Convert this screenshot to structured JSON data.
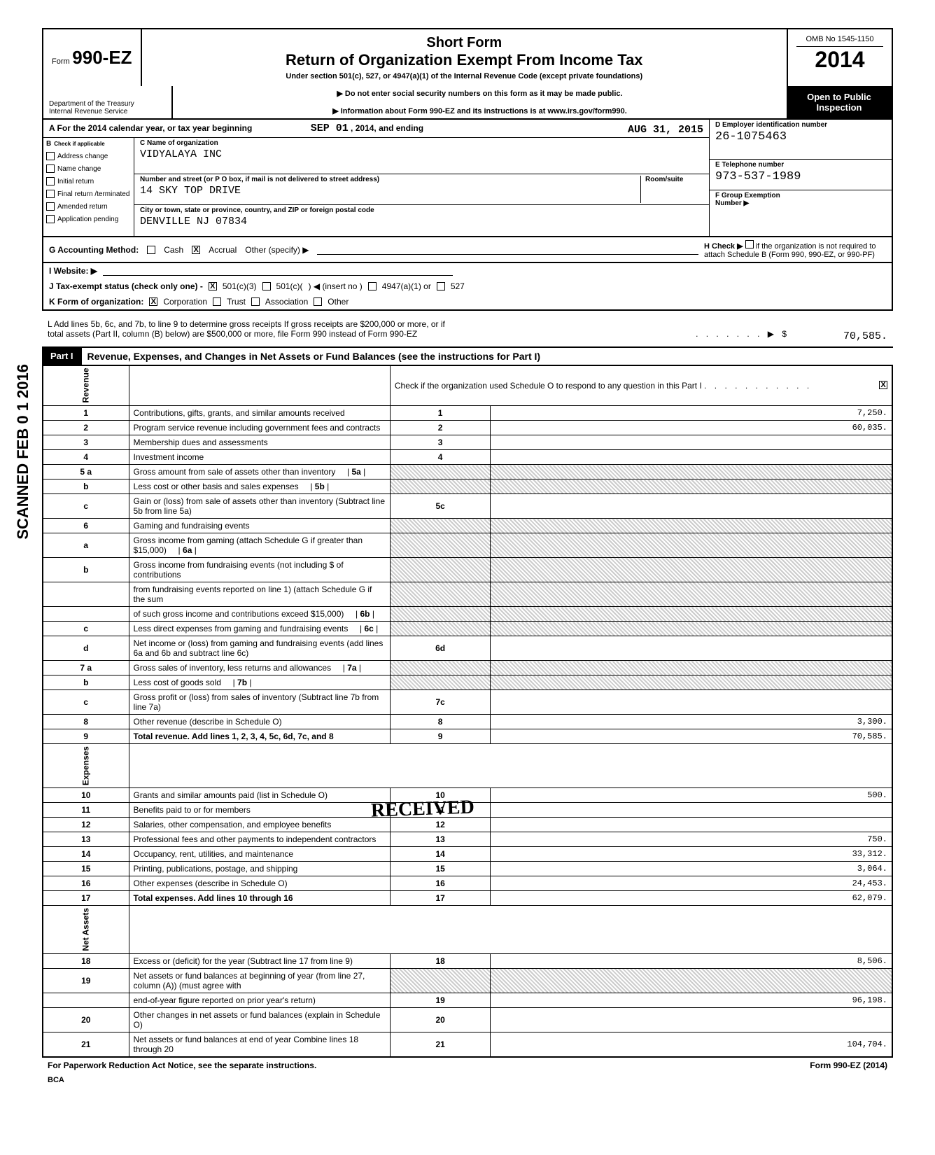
{
  "form": {
    "number_prefix": "Form",
    "number": "990-EZ",
    "short_form": "Short Form",
    "title": "Return of Organization Exempt From Income Tax",
    "subtitle": "Under section 501(c), 527, or 4947(a)(1) of the Internal Revenue Code (except private foundations)",
    "warning": "▶ Do not enter social security numbers on this form as it may be made public.",
    "info": "▶ Information about Form 990-EZ and its instructions is at www.irs.gov/form990.",
    "omb": "OMB No 1545-1150",
    "year": "2014",
    "dept1": "Department of the Treasury",
    "dept2": "Internal Revenue Service",
    "public": "Open to Public Inspection"
  },
  "sectionA": {
    "year_text": "A  For the 2014 calendar year, or tax year beginning",
    "begin_date": "SEP  01",
    "year_mid": ", 2014, and ending",
    "end_date": "AUG  31",
    "end_year": ", 2015",
    "check_label": "B",
    "check_text": "Check if applicable",
    "checks": [
      "Address change",
      "Name change",
      "Initial return",
      "Final return /terminated",
      "Amended return",
      "Application pending"
    ],
    "name_label": "C    Name of organization",
    "name": "VIDYALAYA INC",
    "street_label": "Number and street (or P O  box, if mail is not delivered to street address)",
    "room_label": "Room/suite",
    "street": "14  SKY  TOP  DRIVE",
    "city_label": "City or town, state or province, country, and ZIP or foreign postal code",
    "city": "DENVILLE  NJ  07834",
    "ein_label": "D Employer identification number",
    "ein": "26-1075463",
    "phone_label": "E Telephone number",
    "phone": "973-537-1989",
    "group_label": "F Group Exemption",
    "group_label2": "Number ▶"
  },
  "rows": {
    "g": "G Accounting Method:",
    "g_cash": "Cash",
    "g_accrual": "Accrual",
    "g_other": "Other (specify)  ▶",
    "h": "H Check ▶",
    "h_text": "if the organization is not required to attach Schedule B (Form 990, 990-EZ, or 990-PF)",
    "i": "I   Website:  ▶",
    "j": "J Tax-exempt status (check only one) -",
    "j_501c3": "501(c)(3)",
    "j_501c": "501(c)(",
    "j_insert": ")  ◀ (insert no )",
    "j_4947": "4947(a)(1) or",
    "j_527": "527",
    "k": "K Form of organization:",
    "k_corp": "Corporation",
    "k_trust": "Trust",
    "k_assoc": "Association",
    "k_other": "Other"
  },
  "grossReceipts": {
    "l1": "L Add lines 5b, 6c, and 7b, to line 9 to determine gross receipts  If gross receipts are $200,000 or more, or if",
    "l2": "total assets (Part II, column (B) below) are $500,000 or more, file Form 990 instead of Form 990-EZ",
    "amount": "70,585."
  },
  "part1": {
    "label": "Part I",
    "title": "Revenue, Expenses, and Changes in Net Assets or Fund Balances (see the instructions for Part I)",
    "check_text": "Check if the organization used Schedule O to respond to any question in this Part I"
  },
  "revenue_label": "Revenue",
  "expenses_label": "Expenses",
  "netassets_label": "Net Assets",
  "lines": [
    {
      "n": "1",
      "desc": "Contributions, gifts, grants, and similar amounts received",
      "rn": "1",
      "val": "7,250."
    },
    {
      "n": "2",
      "desc": "Program service revenue including government fees and contracts",
      "rn": "2",
      "val": "60,035."
    },
    {
      "n": "3",
      "desc": "Membership dues and assessments",
      "rn": "3",
      "val": ""
    },
    {
      "n": "4",
      "desc": "Investment income",
      "rn": "4",
      "val": ""
    },
    {
      "n": "5 a",
      "desc": "Gross amount from sale of assets other than inventory",
      "sub": "5a",
      "rn": "",
      "val": "",
      "shaded": true
    },
    {
      "n": "b",
      "desc": "Less  cost or other basis and sales expenses",
      "sub": "5b",
      "rn": "",
      "val": "",
      "shaded": true
    },
    {
      "n": "c",
      "desc": "Gain or (loss) from sale of assets other than inventory (Subtract line 5b from line 5a)",
      "rn": "5c",
      "val": ""
    },
    {
      "n": "6",
      "desc": "Gaming and fundraising events",
      "rn": "",
      "val": "",
      "shaded": true
    },
    {
      "n": "a",
      "desc": "Gross income from gaming (attach Schedule G if greater than $15,000)",
      "sub": "6a",
      "rn": "",
      "val": "",
      "shaded": true
    },
    {
      "n": "b",
      "desc": "Gross income from fundraising events (not including $                                          of contributions",
      "rn": "",
      "val": "",
      "shaded": true
    },
    {
      "n": "",
      "desc": "from fundraising events reported on line 1) (attach Schedule G if the sum",
      "rn": "",
      "val": "",
      "shaded": true
    },
    {
      "n": "",
      "desc": "of such gross income and contributions exceed $15,000)",
      "sub": "6b",
      "rn": "",
      "val": "",
      "shaded": true
    },
    {
      "n": "c",
      "desc": "Less  direct expenses from gaming and fundraising events",
      "sub": "6c",
      "rn": "",
      "val": "",
      "shaded": true
    },
    {
      "n": "d",
      "desc": "Net income or (loss) from gaming and fundraising events (add lines 6a and 6b and subtract line 6c)",
      "rn": "6d",
      "val": ""
    },
    {
      "n": "7 a",
      "desc": "Gross sales of inventory, less returns and allowances",
      "sub": "7a",
      "rn": "",
      "val": "",
      "shaded": true
    },
    {
      "n": "b",
      "desc": "Less  cost of goods sold",
      "sub": "7b",
      "rn": "",
      "val": "",
      "shaded": true
    },
    {
      "n": "c",
      "desc": "Gross profit or (loss) from sales of inventory (Subtract line 7b from line 7a)",
      "rn": "7c",
      "val": ""
    },
    {
      "n": "8",
      "desc": "Other revenue (describe in Schedule O)",
      "rn": "8",
      "val": "3,300."
    },
    {
      "n": "9",
      "desc": "Total revenue. Add lines 1, 2, 3, 4, 5c, 6d, 7c, and 8",
      "rn": "9",
      "val": "70,585.",
      "bold": true
    }
  ],
  "expenses": [
    {
      "n": "10",
      "desc": "Grants and similar amounts paid (list in Schedule O)",
      "rn": "10",
      "val": "500."
    },
    {
      "n": "11",
      "desc": "Benefits paid to or for members",
      "rn": "11",
      "val": ""
    },
    {
      "n": "12",
      "desc": "Salaries, other compensation, and employee benefits",
      "rn": "12",
      "val": ""
    },
    {
      "n": "13",
      "desc": "Professional fees and other payments to independent contractors",
      "rn": "13",
      "val": "750."
    },
    {
      "n": "14",
      "desc": "Occupancy, rent, utilities, and maintenance",
      "rn": "14",
      "val": "33,312."
    },
    {
      "n": "15",
      "desc": "Printing, publications, postage, and shipping",
      "rn": "15",
      "val": "3,064."
    },
    {
      "n": "16",
      "desc": "Other expenses (describe in Schedule O)",
      "rn": "16",
      "val": "24,453."
    },
    {
      "n": "17",
      "desc": "Total expenses. Add lines 10 through 16",
      "rn": "17",
      "val": "62,079.",
      "bold": true
    }
  ],
  "netassets": [
    {
      "n": "18",
      "desc": "Excess or (deficit) for the year (Subtract line 17 from line 9)",
      "rn": "18",
      "val": "8,506."
    },
    {
      "n": "19",
      "desc": "Net assets or fund balances at beginning of year (from line 27, column (A)) (must agree with",
      "rn": "",
      "val": "",
      "shaded": true
    },
    {
      "n": "",
      "desc": "end-of-year figure reported on prior year's return)",
      "rn": "19",
      "val": "96,198."
    },
    {
      "n": "20",
      "desc": "Other changes in net assets or fund balances (explain in Schedule O)",
      "rn": "20",
      "val": ""
    },
    {
      "n": "21",
      "desc": "Net assets or fund balances at end of year  Combine lines 18 through 20",
      "rn": "21",
      "val": "104,704."
    }
  ],
  "footer": {
    "left": "For Paperwork Reduction Act Notice, see the separate instructions.",
    "right": "Form 990-EZ (2014)",
    "bca": "BCA"
  },
  "scanned": "SCANNED FEB 0 1 2016",
  "received": "RECEIVED"
}
